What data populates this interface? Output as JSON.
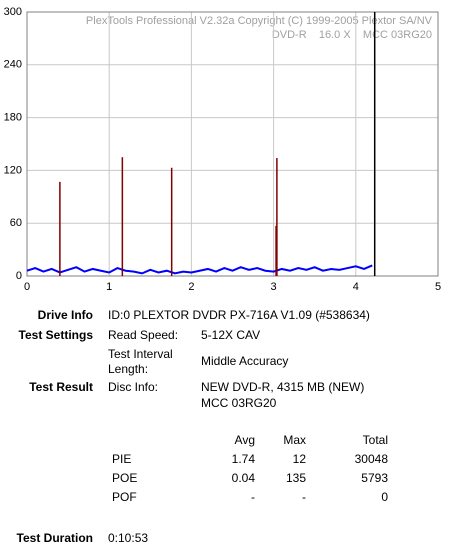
{
  "chart_data": {
    "type": "line",
    "annotations": [
      "PlexTools Professional V2.32a Copyright (C) 1999-2005 Plextor SA/NV",
      "DVD-R    16.0 X    MCC 03RG20"
    ],
    "xlim": [
      0,
      5
    ],
    "xticks": [
      0,
      1,
      2,
      3,
      4,
      5
    ],
    "ylim": [
      0,
      300
    ],
    "yticks": [
      0,
      60,
      120,
      180,
      240,
      300
    ],
    "grid": true,
    "series": [
      {
        "color": "#0000ff",
        "x": [
          0,
          0.1,
          0.2,
          0.3,
          0.4,
          0.5,
          0.6,
          0.7,
          0.8,
          0.9,
          1.0,
          1.1,
          1.2,
          1.3,
          1.4,
          1.5,
          1.6,
          1.7,
          1.8,
          1.9,
          2.0,
          2.1,
          2.2,
          2.3,
          2.4,
          2.5,
          2.6,
          2.7,
          2.8,
          2.9,
          3.0,
          3.1,
          3.2,
          3.3,
          3.4,
          3.5,
          3.6,
          3.7,
          3.8,
          3.9,
          4.0,
          4.1,
          4.2
        ],
        "values": [
          6,
          9,
          5,
          8,
          4,
          7,
          10,
          5,
          8,
          6,
          4,
          9,
          6,
          5,
          3,
          7,
          4,
          6,
          3,
          5,
          4,
          6,
          8,
          5,
          9,
          6,
          10,
          7,
          9,
          6,
          5,
          8,
          6,
          9,
          7,
          10,
          6,
          8,
          7,
          9,
          11,
          8,
          12
        ]
      },
      {
        "color": "#800000",
        "style": "spike",
        "x": [
          0.4,
          1.16,
          1.76,
          3.03,
          3.04
        ],
        "values": [
          107,
          135,
          123,
          57,
          134
        ]
      },
      {
        "color": "#000000",
        "style": "spike",
        "x": [
          4.23
        ],
        "values": [
          300
        ]
      }
    ]
  },
  "info": {
    "drive_info": {
      "label": "Drive Info",
      "value": "ID:0 PLEXTOR DVDR PX-716A V1.09 (#538634)"
    },
    "test_settings": {
      "label": "Test Settings",
      "read_speed_label": "Read Speed:",
      "read_speed": "5-12X CAV",
      "interval_label": "Test Interval Length:",
      "interval": "Middle Accuracy"
    },
    "test_result": {
      "label": "Test Result",
      "disc_info_label": "Disc Info:",
      "disc_info": [
        "NEW DVD-R, 4315 MB (NEW)",
        "MCC 03RG20"
      ]
    },
    "table": {
      "header": [
        "Avg",
        "Max",
        "Total"
      ],
      "rows": [
        [
          "PIE",
          "1.74",
          "12",
          "30048"
        ],
        [
          "POE",
          "0.04",
          "135",
          "5793"
        ],
        [
          "POF",
          "-",
          "-",
          "0"
        ]
      ]
    },
    "test_duration": {
      "label": "Test Duration",
      "value": "0:10:53"
    }
  }
}
